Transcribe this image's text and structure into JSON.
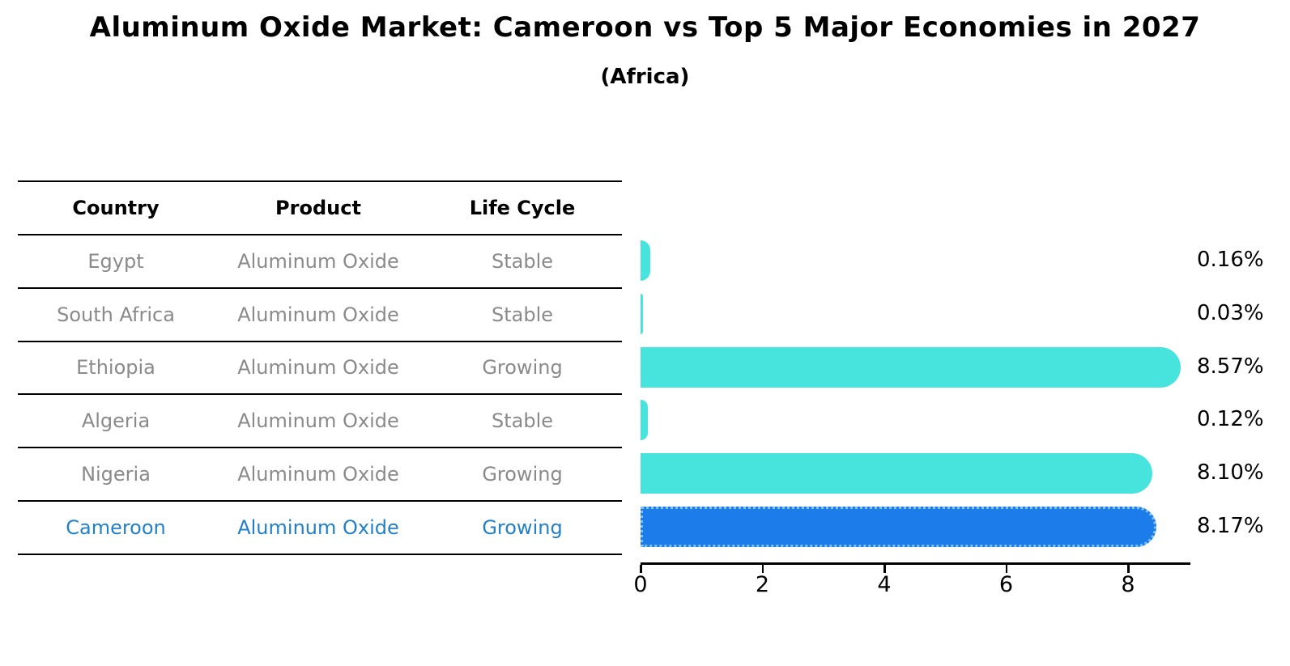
{
  "title": "Aluminum Oxide Market: Cameroon vs Top 5 Major Economies in 2027",
  "subtitle": "(Africa)",
  "colors": {
    "bar_default": "#47e4de",
    "bar_highlight": "#1b7cea",
    "highlight_text": "#2380c8",
    "row_text": "#8a8a8a",
    "axis": "#000000"
  },
  "table": {
    "headers": [
      "Country",
      "Product",
      "Life Cycle"
    ],
    "rows": [
      {
        "country": "Egypt",
        "product": "Aluminum Oxide",
        "life_cycle": "Stable",
        "highlight": false
      },
      {
        "country": "South Africa",
        "product": "Aluminum Oxide",
        "life_cycle": "Stable",
        "highlight": false
      },
      {
        "country": "Ethiopia",
        "product": "Aluminum Oxide",
        "life_cycle": "Growing",
        "highlight": false
      },
      {
        "country": "Algeria",
        "product": "Aluminum Oxide",
        "life_cycle": "Stable",
        "highlight": false
      },
      {
        "country": "Nigeria",
        "product": "Aluminum Oxide",
        "life_cycle": "Growing",
        "highlight": false
      },
      {
        "country": "Cameroon",
        "product": "Aluminum Oxide",
        "life_cycle": "Growing",
        "highlight": true
      }
    ]
  },
  "chart_data": {
    "type": "bar",
    "orientation": "horizontal",
    "title": "Aluminum Oxide Market: Cameroon vs Top 5 Major Economies in 2027",
    "subtitle": "(Africa)",
    "categories": [
      "Egypt",
      "South Africa",
      "Ethiopia",
      "Algeria",
      "Nigeria",
      "Cameroon"
    ],
    "values": [
      0.16,
      0.03,
      8.57,
      0.12,
      8.1,
      8.17
    ],
    "value_labels": [
      "0.16%",
      "0.03%",
      "8.57%",
      "0.12%",
      "8.10%",
      "8.17%"
    ],
    "highlight_category": "Cameroon",
    "xlim": [
      0,
      9
    ],
    "x_ticks": [
      "0",
      "2",
      "4",
      "6",
      "8"
    ],
    "xlabel": "",
    "ylabel": "",
    "grid": false,
    "legend": "none"
  }
}
